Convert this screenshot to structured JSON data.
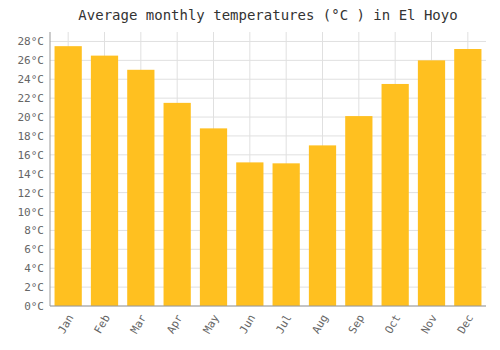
{
  "chart_data": {
    "type": "bar",
    "title": "Average monthly temperatures (°C ) in El Hoyo",
    "categories": [
      "Jan",
      "Feb",
      "Mar",
      "Apr",
      "May",
      "Jun",
      "Jul",
      "Aug",
      "Sep",
      "Oct",
      "Nov",
      "Dec"
    ],
    "values": [
      27.5,
      26.5,
      25.0,
      21.5,
      18.8,
      15.2,
      15.1,
      17.0,
      20.1,
      23.5,
      26.0,
      27.2
    ],
    "color": "#FFC020",
    "ylim": [
      0,
      29
    ],
    "yticks": [
      {
        "value": 0,
        "label": "0°C"
      },
      {
        "value": 2,
        "label": "2°C"
      },
      {
        "value": 4,
        "label": "4°C"
      },
      {
        "value": 6,
        "label": "6°C"
      },
      {
        "value": 8,
        "label": "8°C"
      },
      {
        "value": 10,
        "label": "10°C"
      },
      {
        "value": 12,
        "label": "12°C"
      },
      {
        "value": 14,
        "label": "14°C"
      },
      {
        "value": 16,
        "label": "16°C"
      },
      {
        "value": 18,
        "label": "18°C"
      },
      {
        "value": 20,
        "label": "20°C"
      },
      {
        "value": 22,
        "label": "22°C"
      },
      {
        "value": 24,
        "label": "24°C"
      },
      {
        "value": 26,
        "label": "26°C"
      },
      {
        "value": 28,
        "label": "28°C"
      }
    ],
    "grid": true
  }
}
